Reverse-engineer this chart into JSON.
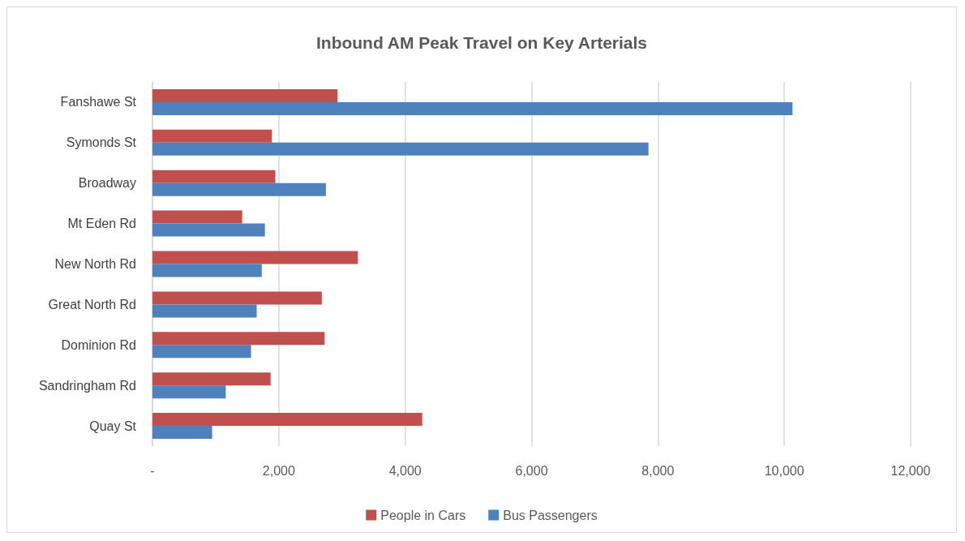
{
  "chart_data": {
    "type": "bar",
    "orientation": "horizontal",
    "title": "Inbound AM Peak Travel on Key Arterials",
    "categories": [
      "Fanshawe St",
      "Symonds St",
      "Broadway",
      "Mt Eden Rd",
      "New North Rd",
      "Great North Rd",
      "Dominion Rd",
      "Sandringham Rd",
      "Quay St"
    ],
    "series": [
      {
        "name": "People in Cars",
        "color": "#c0504d",
        "values": [
          2930,
          1890,
          1945,
          1420,
          3250,
          2680,
          2725,
          1870,
          4270
        ]
      },
      {
        "name": "Bus Passengers",
        "color": "#4f81bd",
        "values": [
          10130,
          7850,
          2745,
          1780,
          1730,
          1650,
          1560,
          1160,
          945
        ]
      }
    ],
    "xlim": [
      0,
      12000
    ],
    "xticks": [
      {
        "value": 0,
        "label": "-"
      },
      {
        "value": 2000,
        "label": "2,000"
      },
      {
        "value": 4000,
        "label": "4,000"
      },
      {
        "value": 6000,
        "label": "6,000"
      },
      {
        "value": 8000,
        "label": "8,000"
      },
      {
        "value": 10000,
        "label": "10,000"
      },
      {
        "value": 12000,
        "label": "12,000"
      }
    ],
    "grid": "x",
    "legend": "bottom"
  }
}
